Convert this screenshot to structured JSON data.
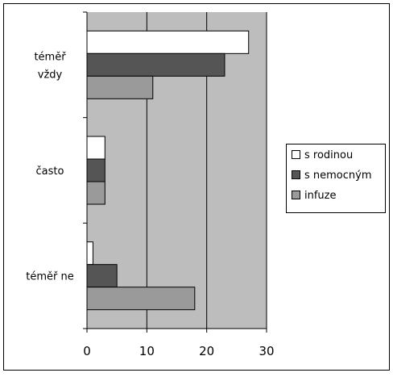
{
  "chart_data": {
    "type": "bar",
    "orientation": "horizontal",
    "categories": [
      "téměř vždy",
      "často",
      "téměř ne"
    ],
    "category_lines": [
      [
        "téměř",
        "vždy"
      ],
      [
        "často"
      ],
      [
        "téměř ne"
      ]
    ],
    "series": [
      {
        "name": "s rodinou",
        "values": [
          27,
          3,
          1
        ],
        "color": "#ffffff"
      },
      {
        "name": "s nemocným",
        "values": [
          23,
          3,
          5
        ],
        "color": "#555555"
      },
      {
        "name": "infuze",
        "values": [
          11,
          3,
          18
        ],
        "color": "#9a9a9a"
      }
    ],
    "xlim": [
      0,
      30
    ],
    "xticks": [
      "0",
      "10",
      "20",
      "30"
    ],
    "grid": true,
    "legend_position": "right",
    "plot_background": "#bdbdbd",
    "page_background": "#ffffff"
  }
}
